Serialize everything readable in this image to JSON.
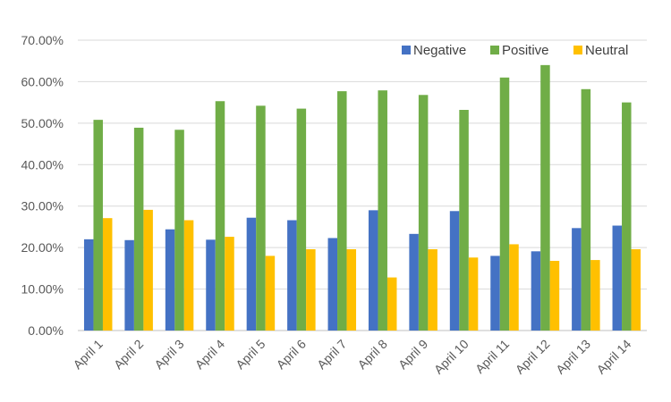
{
  "chart_data": {
    "type": "bar",
    "title": "",
    "xlabel": "",
    "ylabel": "",
    "ylim": [
      0,
      70
    ],
    "y_tick_step": 10,
    "y_tick_format": "percent_2dp",
    "grid": true,
    "legend_position": "top-right",
    "categories": [
      "April 1",
      "April 2",
      "April 3",
      "April 4",
      "April 5",
      "April 6",
      "April 7",
      "April 8",
      "April 9",
      "April 10",
      "April 11",
      "April 12",
      "April 13",
      "April 14"
    ],
    "series": [
      {
        "name": "Negative",
        "color": "#4472C4",
        "values": [
          22.0,
          21.8,
          24.4,
          21.9,
          27.2,
          26.6,
          22.3,
          29.0,
          23.3,
          28.8,
          18.0,
          19.1,
          24.7,
          25.3
        ]
      },
      {
        "name": "Positive",
        "color": "#70AD47",
        "values": [
          50.8,
          48.9,
          48.4,
          55.3,
          54.2,
          53.5,
          57.7,
          57.9,
          56.8,
          53.2,
          61.0,
          64.0,
          58.2,
          55.0
        ]
      },
      {
        "name": "Neutral",
        "color": "#FFC000",
        "values": [
          27.1,
          29.1,
          26.6,
          22.6,
          18.0,
          19.6,
          19.6,
          12.8,
          19.6,
          17.6,
          20.8,
          16.8,
          17.0,
          19.6
        ]
      }
    ]
  }
}
